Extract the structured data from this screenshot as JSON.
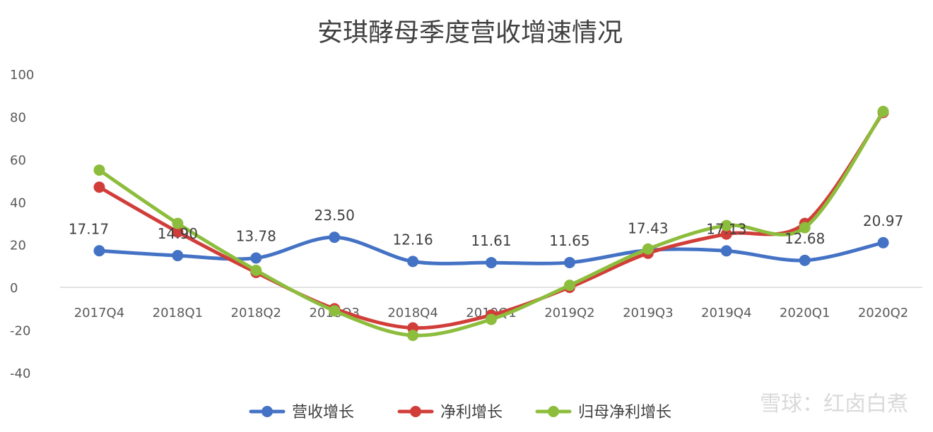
{
  "chart_data": {
    "type": "line",
    "title": "安琪酵母季度营收增速情况",
    "xlabel": "",
    "ylabel": "",
    "categories": [
      "2017Q4",
      "2018Q1",
      "2018Q2",
      "2018Q3",
      "2018Q4",
      "2019Q1",
      "2019Q2",
      "2019Q3",
      "2019Q4",
      "2020Q1",
      "2020Q2"
    ],
    "ylim": [
      -40,
      100
    ],
    "yticks": [
      "-40",
      "-20",
      "0",
      "20",
      "40",
      "60",
      "80",
      "100"
    ],
    "grid": false,
    "legend_position": "bottom",
    "series": [
      {
        "name": "营收增长",
        "color": "#4472c4",
        "values": [
          17.17,
          14.9,
          13.78,
          23.5,
          12.16,
          11.61,
          11.65,
          17.43,
          17.13,
          12.68,
          20.97
        ],
        "labels": [
          "17.17",
          "14.90",
          "13.78",
          "23.50",
          "12.16",
          "11.61",
          "11.65",
          "17.43",
          "17.13",
          "12.68",
          "20.97"
        ]
      },
      {
        "name": "净利增长",
        "color": "#d13e3a",
        "values": [
          47,
          26,
          7,
          -10,
          -19,
          -13,
          0,
          16,
          25,
          30,
          82
        ]
      },
      {
        "name": "归母净利增长",
        "color": "#8dbd3c",
        "values": [
          55,
          30,
          8,
          -11,
          -22.5,
          -15,
          1,
          18,
          29,
          28,
          82.5
        ]
      }
    ]
  },
  "watermark": "雪球：红卤白煮"
}
